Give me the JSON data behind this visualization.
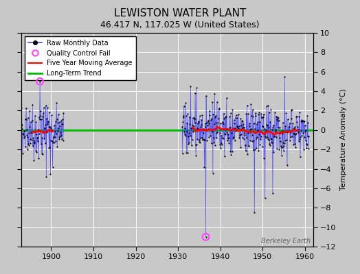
{
  "title": "LEWISTON WATER PLANT",
  "subtitle": "46.417 N, 117.025 W (United States)",
  "ylabel": "Temperature Anomaly (°C)",
  "watermark": "Berkeley Earth",
  "xlim": [
    1893,
    1962
  ],
  "ylim": [
    -12,
    10
  ],
  "yticks": [
    -12,
    -10,
    -8,
    -6,
    -4,
    -2,
    0,
    2,
    4,
    6,
    8,
    10
  ],
  "xticks": [
    1900,
    1910,
    1920,
    1930,
    1940,
    1950,
    1960
  ],
  "fig_bg_color": "#c8c8c8",
  "plot_bg_color": "#c8c8c8",
  "raw_color": "#4444ff",
  "dot_color": "#000000",
  "ma_color": "#ff0000",
  "trend_color": "#00bb00",
  "qc_color": "#ff44ff",
  "early_start": 1893,
  "early_end": 1902,
  "late_start": 1931,
  "late_end": 1960,
  "qc_fail_1_year": 1897.3333,
  "qc_fail_1_val": 5.0,
  "qc_fail_2_year": 1936.5833,
  "qc_fail_2_val": -11.0,
  "seed": 42
}
